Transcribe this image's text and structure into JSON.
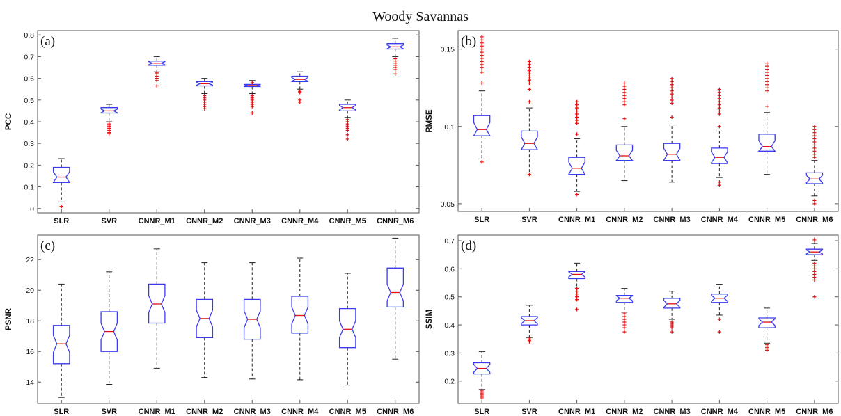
{
  "figure": {
    "title": "Woody Savannas"
  },
  "colors": {
    "box": "#3a3aef",
    "median": "#e01010",
    "whisker": "#222222",
    "outlier": "#e01010",
    "axis": "#555555"
  },
  "chart_data": [
    {
      "type": "box",
      "panel_label": "(a)",
      "ylabel": "PCC",
      "ylim": [
        -0.02,
        0.82
      ],
      "yticks": [
        0,
        0.1,
        0.2,
        0.3,
        0.4,
        0.5,
        0.6,
        0.7,
        0.8
      ],
      "ytick_labels": [
        "0",
        "0.1",
        "0.2",
        "0.3",
        "0.4",
        "0.5",
        "0.6",
        "0.7",
        "0.8"
      ],
      "categories": [
        "SLR",
        "SVR",
        "CNNR_M1",
        "CNNR_M2",
        "CNNR_M3",
        "CNNR_M4",
        "CNNR_M5",
        "CNNR_M6"
      ],
      "boxes": [
        {
          "whisker_low": 0.03,
          "q1": 0.12,
          "median": 0.145,
          "q3": 0.19,
          "whisker_high": 0.23,
          "outliers": [
            0.01
          ]
        },
        {
          "whisker_low": 0.4,
          "q1": 0.44,
          "median": 0.45,
          "q3": 0.465,
          "whisker_high": 0.48,
          "outliers": [
            0.39,
            0.38,
            0.37,
            0.36,
            0.35,
            0.345
          ]
        },
        {
          "whisker_low": 0.63,
          "q1": 0.66,
          "median": 0.67,
          "q3": 0.68,
          "whisker_high": 0.7,
          "outliers": [
            0.625,
            0.62,
            0.61,
            0.6,
            0.59,
            0.565
          ]
        },
        {
          "whisker_low": 0.53,
          "q1": 0.565,
          "median": 0.575,
          "q3": 0.585,
          "whisker_high": 0.6,
          "outliers": [
            0.52,
            0.51,
            0.5,
            0.49,
            0.48,
            0.47,
            0.46
          ]
        },
        {
          "whisker_low": 0.53,
          "q1": 0.562,
          "median": 0.567,
          "q3": 0.572,
          "whisker_high": 0.59,
          "outliers": [
            0.52,
            0.51,
            0.5,
            0.49,
            0.48,
            0.47,
            0.44,
            0.58
          ]
        },
        {
          "whisker_low": 0.55,
          "q1": 0.585,
          "median": 0.595,
          "q3": 0.61,
          "whisker_high": 0.63,
          "outliers": [
            0.54,
            0.535,
            0.5,
            0.49
          ]
        },
        {
          "whisker_low": 0.42,
          "q1": 0.45,
          "median": 0.465,
          "q3": 0.48,
          "whisker_high": 0.5,
          "outliers": [
            0.41,
            0.4,
            0.39,
            0.38,
            0.37,
            0.36,
            0.34,
            0.32
          ]
        },
        {
          "whisker_low": 0.7,
          "q1": 0.735,
          "median": 0.745,
          "q3": 0.76,
          "whisker_high": 0.785,
          "outliers": [
            0.69,
            0.68,
            0.67,
            0.66,
            0.65,
            0.64,
            0.62
          ]
        }
      ]
    },
    {
      "type": "box",
      "panel_label": "(b)",
      "ylabel": "RMSE",
      "ylim": [
        0.045,
        0.162
      ],
      "yticks": [
        0.05,
        0.1,
        0.15
      ],
      "ytick_labels": [
        "0.05",
        "0.1",
        "0.15"
      ],
      "categories": [
        "SLR",
        "SVR",
        "CNNR_M1",
        "CNNR_M2",
        "CNNR_M3",
        "CNNR_M4",
        "CNNR_M5",
        "CNNR_M6"
      ],
      "boxes": [
        {
          "whisker_low": 0.079,
          "q1": 0.094,
          "median": 0.098,
          "q3": 0.107,
          "whisker_high": 0.123,
          "outliers": [
            0.128,
            0.135,
            0.138,
            0.14,
            0.142,
            0.144,
            0.146,
            0.148,
            0.15,
            0.152,
            0.154,
            0.156,
            0.158,
            0.077
          ]
        },
        {
          "whisker_low": 0.07,
          "q1": 0.085,
          "median": 0.089,
          "q3": 0.097,
          "whisker_high": 0.112,
          "outliers": [
            0.116,
            0.124,
            0.128,
            0.13,
            0.132,
            0.134,
            0.136,
            0.138,
            0.14,
            0.142,
            0.069
          ]
        },
        {
          "whisker_low": 0.058,
          "q1": 0.069,
          "median": 0.073,
          "q3": 0.08,
          "whisker_high": 0.092,
          "outliers": [
            0.095,
            0.102,
            0.104,
            0.106,
            0.108,
            0.11,
            0.112,
            0.114,
            0.116,
            0.056
          ]
        },
        {
          "whisker_low": 0.065,
          "q1": 0.078,
          "median": 0.081,
          "q3": 0.088,
          "whisker_high": 0.1,
          "outliers": [
            0.105,
            0.114,
            0.116,
            0.118,
            0.12,
            0.122,
            0.124,
            0.126,
            0.128
          ]
        },
        {
          "whisker_low": 0.064,
          "q1": 0.078,
          "median": 0.082,
          "q3": 0.089,
          "whisker_high": 0.101,
          "outliers": [
            0.106,
            0.115,
            0.117,
            0.119,
            0.121,
            0.123,
            0.125,
            0.127,
            0.129,
            0.131
          ]
        },
        {
          "whisker_low": 0.067,
          "q1": 0.076,
          "median": 0.08,
          "q3": 0.086,
          "whisker_high": 0.097,
          "outliers": [
            0.1,
            0.108,
            0.11,
            0.112,
            0.114,
            0.116,
            0.118,
            0.12,
            0.122,
            0.124,
            0.064,
            0.062
          ]
        },
        {
          "whisker_low": 0.069,
          "q1": 0.084,
          "median": 0.087,
          "q3": 0.095,
          "whisker_high": 0.109,
          "outliers": [
            0.113,
            0.123,
            0.125,
            0.127,
            0.129,
            0.131,
            0.133,
            0.135,
            0.137,
            0.139,
            0.141
          ]
        },
        {
          "whisker_low": 0.055,
          "q1": 0.063,
          "median": 0.066,
          "q3": 0.07,
          "whisker_high": 0.078,
          "outliers": [
            0.08,
            0.082,
            0.084,
            0.086,
            0.088,
            0.09,
            0.092,
            0.094,
            0.096,
            0.098,
            0.1,
            0.052,
            0.05
          ]
        }
      ]
    },
    {
      "type": "box",
      "panel_label": "(c)",
      "ylabel": "PSNR",
      "ylim": [
        12.6,
        23.6
      ],
      "yticks": [
        14,
        16,
        18,
        20,
        22
      ],
      "ytick_labels": [
        "14",
        "16",
        "18",
        "20",
        "22"
      ],
      "categories": [
        "SLR",
        "SVR",
        "CNNR_M1",
        "CNNR_M2",
        "CNNR_M3",
        "CNNR_M4",
        "CNNR_M5",
        "CNNR_M6"
      ],
      "boxes": [
        {
          "whisker_low": 13.0,
          "q1": 15.2,
          "median": 16.5,
          "q3": 17.7,
          "whisker_high": 20.4,
          "outliers": []
        },
        {
          "whisker_low": 13.85,
          "q1": 16.0,
          "median": 17.3,
          "q3": 18.6,
          "whisker_high": 21.2,
          "outliers": []
        },
        {
          "whisker_low": 14.9,
          "q1": 17.85,
          "median": 19.1,
          "q3": 20.4,
          "whisker_high": 22.7,
          "outliers": []
        },
        {
          "whisker_low": 14.3,
          "q1": 16.9,
          "median": 18.15,
          "q3": 19.4,
          "whisker_high": 21.8,
          "outliers": []
        },
        {
          "whisker_low": 14.2,
          "q1": 16.8,
          "median": 18.1,
          "q3": 19.4,
          "whisker_high": 21.8,
          "outliers": []
        },
        {
          "whisker_low": 14.15,
          "q1": 17.2,
          "median": 18.35,
          "q3": 19.6,
          "whisker_high": 22.1,
          "outliers": []
        },
        {
          "whisker_low": 13.8,
          "q1": 16.25,
          "median": 17.45,
          "q3": 18.8,
          "whisker_high": 21.1,
          "outliers": []
        },
        {
          "whisker_low": 15.5,
          "q1": 18.9,
          "median": 19.85,
          "q3": 21.45,
          "whisker_high": 23.4,
          "outliers": []
        }
      ]
    },
    {
      "type": "box",
      "panel_label": "(d)",
      "ylabel": "SSIM",
      "ylim": [
        0.12,
        0.72
      ],
      "yticks": [
        0.2,
        0.3,
        0.4,
        0.5,
        0.6,
        0.7
      ],
      "ytick_labels": [
        "0.2",
        "0.3",
        "0.4",
        "0.5",
        "0.6",
        "0.7"
      ],
      "categories": [
        "SLR",
        "SVR",
        "CNNR_M1",
        "CNNR_M2",
        "CNNR_M3",
        "CNNR_M4",
        "CNNR_M5",
        "CNNR_M6"
      ],
      "boxes": [
        {
          "whisker_low": 0.17,
          "q1": 0.225,
          "median": 0.245,
          "q3": 0.265,
          "whisker_high": 0.305,
          "outliers": [
            0.165,
            0.16,
            0.155,
            0.15,
            0.145,
            0.14
          ]
        },
        {
          "whisker_low": 0.355,
          "q1": 0.4,
          "median": 0.415,
          "q3": 0.43,
          "whisker_high": 0.47,
          "outliers": [
            0.35,
            0.345,
            0.34
          ]
        },
        {
          "whisker_low": 0.535,
          "q1": 0.565,
          "median": 0.58,
          "q3": 0.59,
          "whisker_high": 0.62,
          "outliers": [
            0.53,
            0.52,
            0.51,
            0.5,
            0.49,
            0.455
          ]
        },
        {
          "whisker_low": 0.445,
          "q1": 0.48,
          "median": 0.495,
          "q3": 0.505,
          "whisker_high": 0.53,
          "outliers": [
            0.44,
            0.43,
            0.42,
            0.41,
            0.4,
            0.39,
            0.375
          ]
        },
        {
          "whisker_low": 0.42,
          "q1": 0.46,
          "median": 0.475,
          "q3": 0.495,
          "whisker_high": 0.52,
          "outliers": [
            0.41,
            0.405,
            0.4,
            0.395,
            0.39,
            0.375
          ]
        },
        {
          "whisker_low": 0.435,
          "q1": 0.48,
          "median": 0.495,
          "q3": 0.51,
          "whisker_high": 0.545,
          "outliers": [
            0.42,
            0.375
          ]
        },
        {
          "whisker_low": 0.335,
          "q1": 0.39,
          "median": 0.41,
          "q3": 0.425,
          "whisker_high": 0.46,
          "outliers": [
            0.33,
            0.325,
            0.32,
            0.315,
            0.31
          ]
        },
        {
          "whisker_low": 0.63,
          "q1": 0.65,
          "median": 0.66,
          "q3": 0.67,
          "whisker_high": 0.69,
          "outliers": [
            0.7,
            0.705,
            0.62,
            0.61,
            0.6,
            0.59,
            0.58,
            0.57,
            0.56,
            0.5
          ]
        }
      ]
    }
  ]
}
